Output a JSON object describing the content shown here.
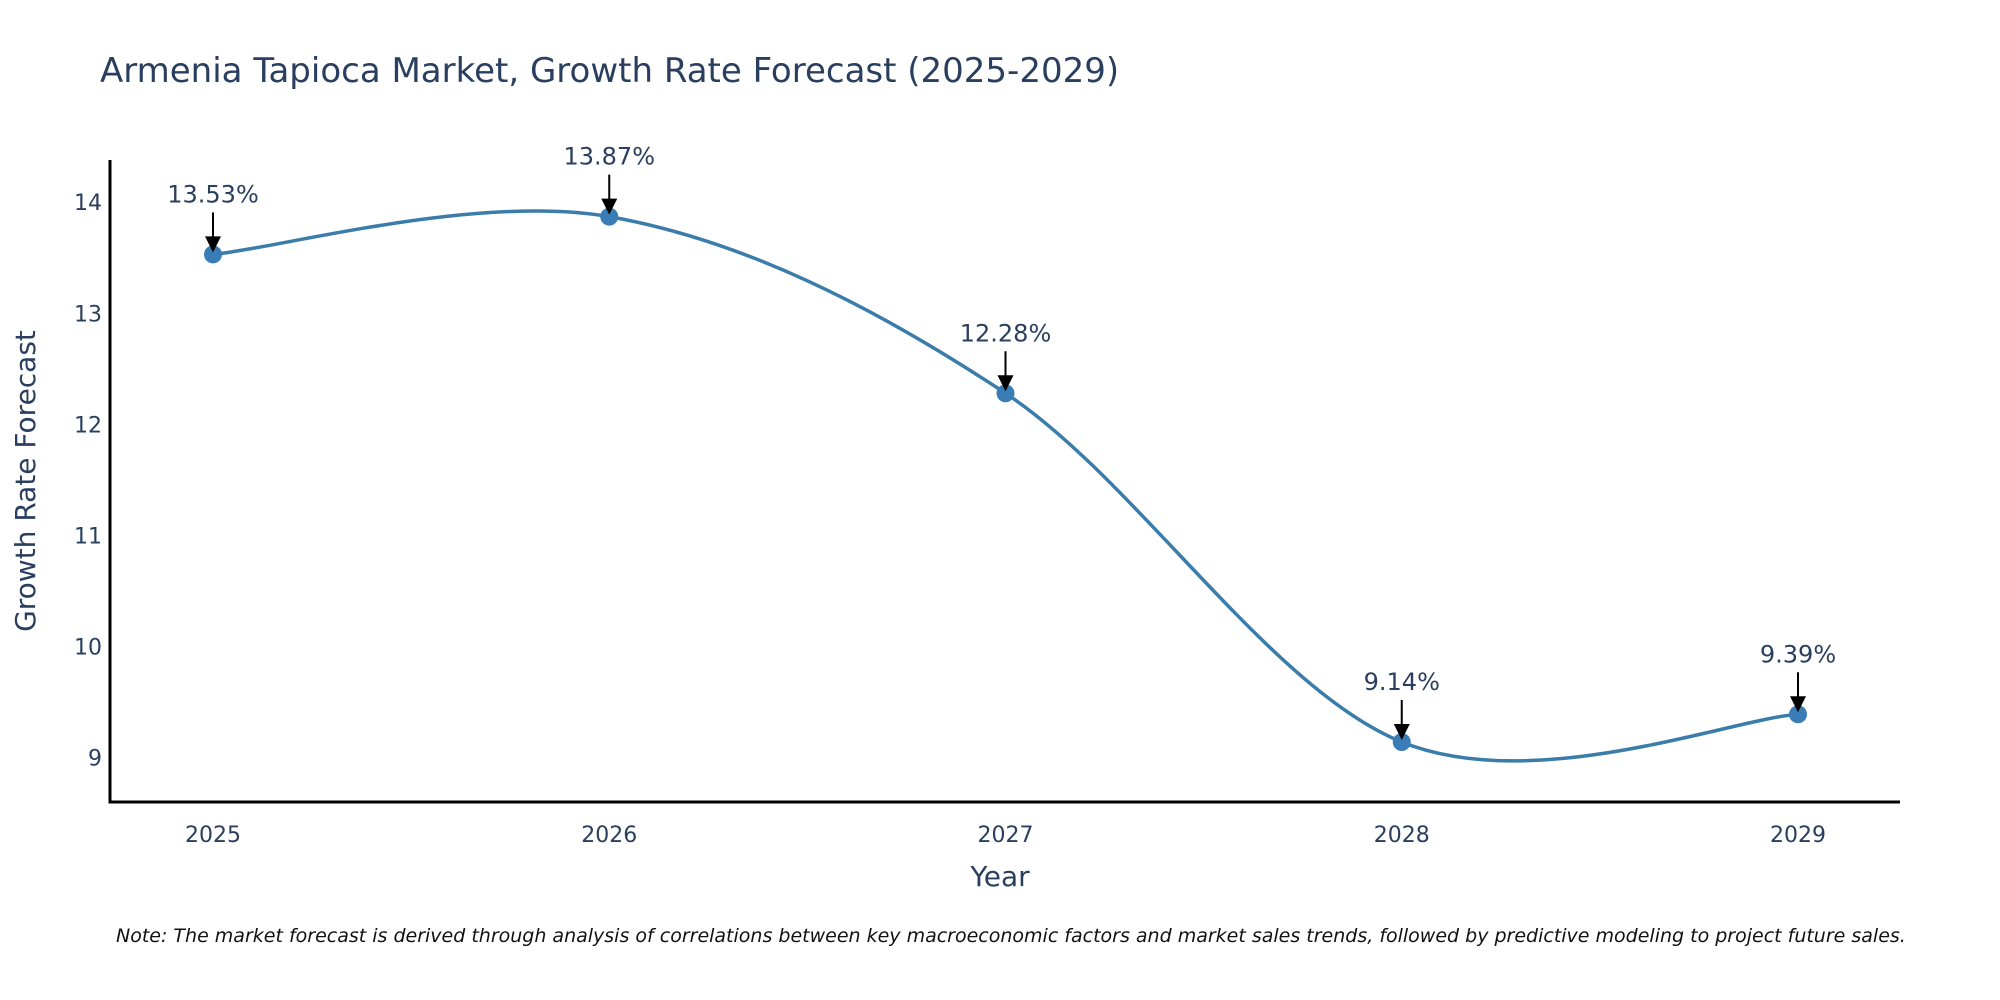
{
  "chart_data": {
    "type": "line",
    "title": "Armenia Tapioca Market, Growth Rate Forecast (2025-2029)",
    "xlabel": "Year",
    "ylabel": "Growth Rate Forecast",
    "categories": [
      "2025",
      "2026",
      "2027",
      "2028",
      "2029"
    ],
    "series": [
      {
        "name": "Growth Rate Forecast",
        "values": [
          13.53,
          13.87,
          12.28,
          9.14,
          9.39
        ],
        "color": "#3a7caa",
        "line_shape": "spline"
      }
    ],
    "annotations": [
      "13.53%",
      "13.87%",
      "12.28%",
      "9.14%",
      "9.39%"
    ],
    "yticks": [
      9,
      10,
      11,
      12,
      13,
      14
    ],
    "ytick_labels": [
      "9",
      "10",
      "11",
      "12",
      "13",
      "14"
    ],
    "ylim": [
      8.6,
      14.38
    ],
    "grid": false,
    "legend": "none",
    "note": "Note: The market forecast is derived through analysis of correlations between key macroeconomic factors and market sales trends, followed by predictive modeling to project future sales."
  }
}
